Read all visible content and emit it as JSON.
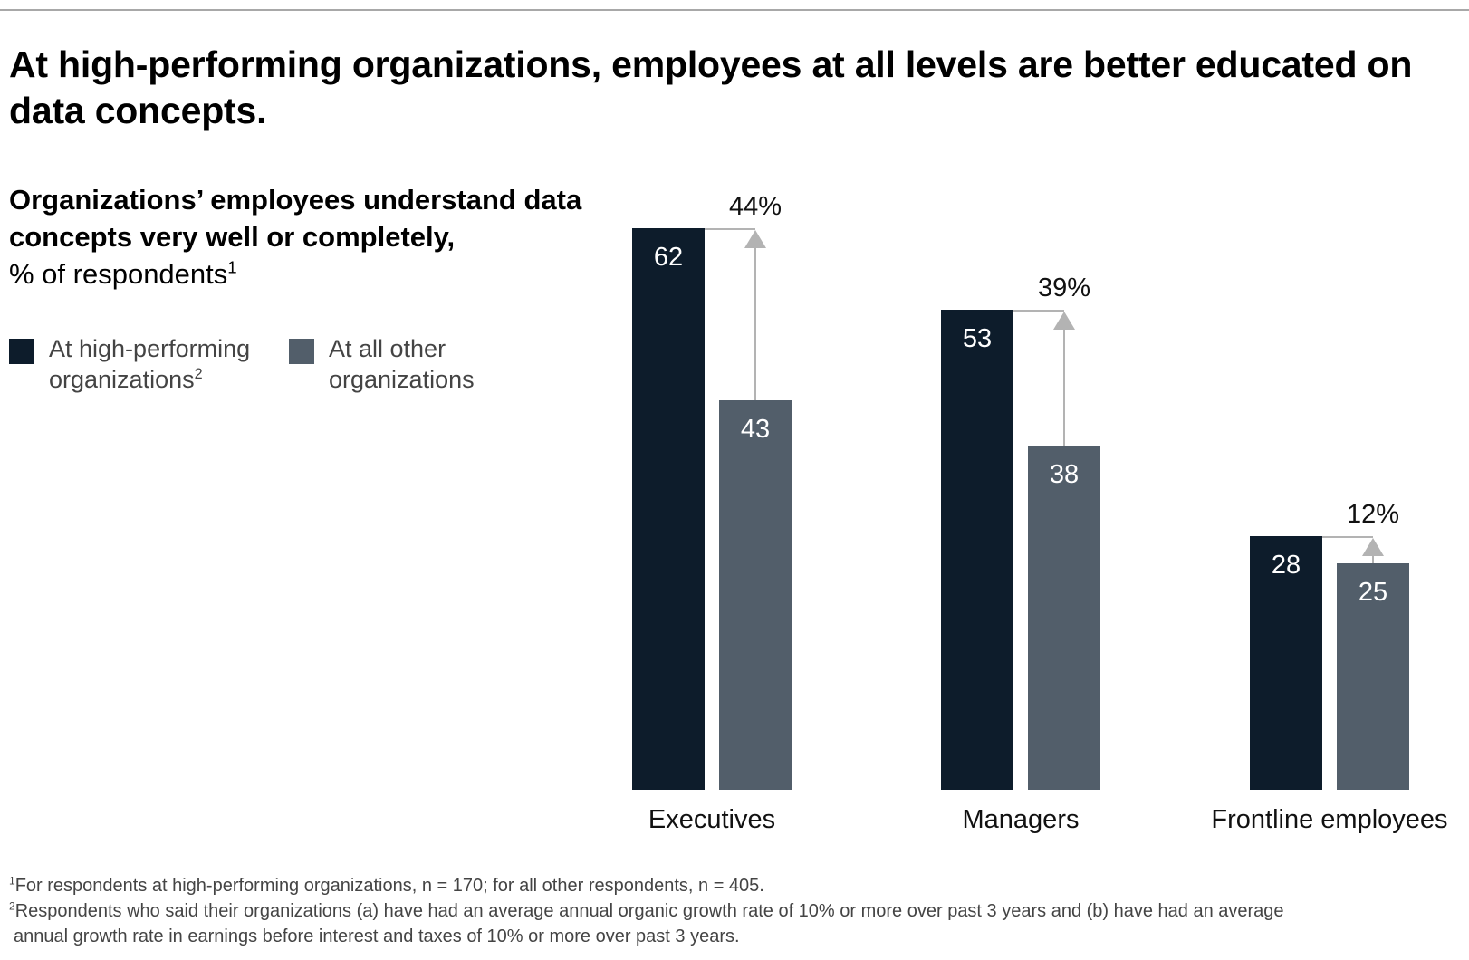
{
  "title": "At high-performing organizations, employees at all levels are better educated on data concepts.",
  "subtitle": {
    "bold": "Organizations’ employees understand data concepts very well or completely,",
    "regular": "% of respondents",
    "sup": "1"
  },
  "legend": [
    {
      "label_line1": "At high-performing",
      "label_line2": "organizations",
      "sup": "2",
      "color": "#0d1c2b"
    },
    {
      "label_line1": "At all other",
      "label_line2": "organizations",
      "sup": "",
      "color": "#525e6a"
    }
  ],
  "footnotes": [
    {
      "sup": "1",
      "text": "For respondents at high-performing organizations, n = 170; for all other respondents, n = 405."
    },
    {
      "sup": "2",
      "text": "Respondents who said their organizations (a) have had an average annual organic growth rate of 10% or more over past 3 years and (b) have had an average"
    },
    {
      "sup": "",
      "text": "annual growth rate in earnings before interest and taxes of 10% or more over past 3 years."
    }
  ],
  "colors": {
    "high": "#0d1c2b",
    "other": "#525e6a",
    "arrow": "#b3b3b3",
    "rule": "#a8a8a8"
  },
  "chart_data": {
    "type": "bar",
    "categories": [
      "Executives",
      "Managers",
      "Frontline employees"
    ],
    "series": [
      {
        "name": "At high-performing organizations",
        "values": [
          62,
          53,
          28
        ]
      },
      {
        "name": "At all other organizations",
        "values": [
          43,
          38,
          25
        ]
      }
    ],
    "differences": [
      "44%",
      "39%",
      "12%"
    ],
    "data_labels": true,
    "ylim": [
      0,
      62
    ],
    "grid": false,
    "legend_position": "left",
    "xlabel": "",
    "ylabel": ""
  }
}
